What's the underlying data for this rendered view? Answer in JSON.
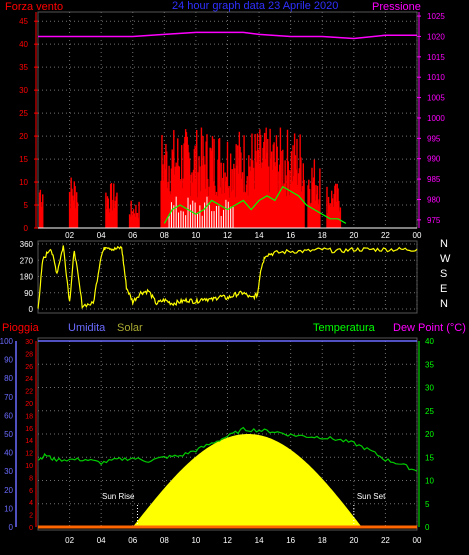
{
  "header": {
    "left_label": "Forza vento",
    "title": "24 hour graph data  23 Aprile 2020",
    "right_label": "Pressione"
  },
  "wind_dir_labels": [
    "N",
    "W",
    "S",
    "E",
    "N"
  ],
  "bottom_header": {
    "rain": "Pioggia",
    "humidity": "Umidita",
    "solar": "Solar",
    "temperature": "Temperatura",
    "dewpoint": "Dew Point (°C)"
  },
  "markers": {
    "sun_rise": "Sun Rise",
    "sun_set": "Sun Set"
  },
  "colors": {
    "wind": "#ff0000",
    "gust": "#ff0000",
    "avg_wind": "#00ff00",
    "pressure": "#ff00ff",
    "direction": "#ffff00",
    "solar": "#ffff00",
    "temperature": "#00cc00",
    "grid": "#707070",
    "axis_x": "#ffffff",
    "rain_axis": "#ff0000",
    "humidity_axis": "#6b6bff",
    "temp_axis": "#00ff00",
    "title": "#3030ff"
  },
  "chart_data": [
    {
      "type": "bar",
      "name": "wind",
      "x_ticks": [
        "02",
        "04",
        "06",
        "08",
        "10",
        "12",
        "14",
        "16",
        "18",
        "20",
        "22",
        "00"
      ],
      "y_left_ticks": [
        0,
        5,
        10,
        15,
        20,
        25,
        30,
        35,
        40,
        45
      ],
      "y_right_ticks": [
        975,
        980,
        985,
        990,
        995,
        1000,
        1005,
        1010,
        1015,
        1020,
        1025
      ],
      "ylim_left": [
        0,
        47
      ],
      "ylim_right": [
        973,
        1026
      ],
      "pressure": [
        [
          0,
          1020
        ],
        [
          2,
          1020
        ],
        [
          4,
          1020
        ],
        [
          6,
          1020
        ],
        [
          8,
          1020.5
        ],
        [
          10,
          1021
        ],
        [
          12,
          1021
        ],
        [
          13,
          1021
        ],
        [
          14,
          1020.5
        ],
        [
          16,
          1020
        ],
        [
          18,
          1020
        ],
        [
          20,
          1019.5
        ],
        [
          22,
          1020.3
        ],
        [
          24,
          1020.3
        ]
      ],
      "gust_blocks": [
        {
          "start": 0.1,
          "end": 0.3,
          "max": 12
        },
        {
          "start": 2.0,
          "end": 2.5,
          "max": 12
        },
        {
          "start": 4.3,
          "end": 5.0,
          "max": 10
        },
        {
          "start": 5.8,
          "end": 6.4,
          "max": 6
        },
        {
          "start": 7.8,
          "end": 16.9,
          "max": 22
        },
        {
          "start": 17.1,
          "end": 17.9,
          "max": 16
        },
        {
          "start": 18.3,
          "end": 19.2,
          "max": 10
        }
      ],
      "avg_wind": [
        [
          8.0,
          1
        ],
        [
          8.5,
          4
        ],
        [
          9.0,
          5
        ],
        [
          9.5,
          4
        ],
        [
          10.0,
          3
        ],
        [
          10.5,
          4
        ],
        [
          11.0,
          6
        ],
        [
          11.5,
          5
        ],
        [
          12.0,
          4
        ],
        [
          12.5,
          5
        ],
        [
          13.0,
          6
        ],
        [
          13.5,
          4
        ],
        [
          14.0,
          6
        ],
        [
          14.5,
          7
        ],
        [
          15.0,
          6
        ],
        [
          15.5,
          9
        ],
        [
          16.0,
          8
        ],
        [
          16.5,
          7
        ],
        [
          17.0,
          5
        ],
        [
          17.5,
          4
        ],
        [
          18.0,
          3
        ],
        [
          18.5,
          2
        ],
        [
          19.0,
          2
        ],
        [
          19.5,
          1
        ]
      ]
    },
    {
      "type": "line",
      "name": "direction",
      "x_ticks": [
        "02",
        "04",
        "06",
        "08",
        "10",
        "12",
        "14",
        "16",
        "18",
        "20",
        "22",
        "00"
      ],
      "y_ticks": [
        0,
        90,
        180,
        270,
        360
      ],
      "ylim": [
        0,
        360
      ],
      "values": [
        [
          0,
          0
        ],
        [
          0.3,
          270
        ],
        [
          0.8,
          340
        ],
        [
          1.2,
          200
        ],
        [
          1.6,
          350
        ],
        [
          2.0,
          40
        ],
        [
          2.3,
          330
        ],
        [
          2.8,
          20
        ],
        [
          3.5,
          30
        ],
        [
          4.0,
          300
        ],
        [
          4.3,
          350
        ],
        [
          4.8,
          330
        ],
        [
          5.3,
          340
        ],
        [
          5.6,
          120
        ],
        [
          6.0,
          40
        ],
        [
          6.5,
          90
        ],
        [
          7.0,
          100
        ],
        [
          7.5,
          30
        ],
        [
          8.0,
          50
        ],
        [
          8.5,
          30
        ],
        [
          9.0,
          40
        ],
        [
          9.5,
          50
        ],
        [
          10.0,
          40
        ],
        [
          10.5,
          60
        ],
        [
          11.0,
          50
        ],
        [
          11.5,
          70
        ],
        [
          12.0,
          60
        ],
        [
          12.5,
          80
        ],
        [
          13.0,
          90
        ],
        [
          13.5,
          60
        ],
        [
          13.9,
          80
        ],
        [
          14.1,
          220
        ],
        [
          14.4,
          300
        ],
        [
          15.0,
          310
        ],
        [
          16.0,
          320
        ],
        [
          17.0,
          320
        ],
        [
          18.0,
          330
        ],
        [
          19.0,
          320
        ],
        [
          20.0,
          330
        ],
        [
          21.0,
          330
        ],
        [
          22.0,
          330
        ],
        [
          23.0,
          330
        ],
        [
          24.0,
          330
        ]
      ]
    },
    {
      "type": "line",
      "name": "temperature_solar",
      "x_ticks": [
        "02",
        "04",
        "06",
        "08",
        "10",
        "12",
        "14",
        "16",
        "18",
        "20",
        "22",
        "00"
      ],
      "y_left_humidity_ticks": [
        0,
        10,
        20,
        30,
        40,
        50,
        60,
        70,
        80,
        90,
        100
      ],
      "y_left_rain_ticks": [
        0,
        2,
        4,
        6,
        8,
        10,
        12,
        14,
        16,
        18,
        20,
        22,
        24,
        26,
        28,
        30
      ],
      "y_right_ticks": [
        0,
        5,
        10,
        15,
        20,
        25,
        30,
        35,
        40
      ],
      "ylim_temp": [
        0,
        40
      ],
      "temperature": [
        [
          0,
          14.5
        ],
        [
          0.5,
          15.5
        ],
        [
          1,
          14.5
        ],
        [
          2,
          14.5
        ],
        [
          3,
          14.5
        ],
        [
          4,
          13.8
        ],
        [
          5,
          14.5
        ],
        [
          6,
          14.8
        ],
        [
          7,
          14.2
        ],
        [
          8,
          15.0
        ],
        [
          9,
          15.3
        ],
        [
          10,
          16.5
        ],
        [
          11,
          18
        ],
        [
          12,
          19.5
        ],
        [
          13,
          21
        ],
        [
          14,
          20.8
        ],
        [
          15,
          20.5
        ],
        [
          16,
          19.8
        ],
        [
          17,
          19.5
        ],
        [
          18,
          19.3
        ],
        [
          19,
          18.8
        ],
        [
          20,
          18
        ],
        [
          21,
          16.5
        ],
        [
          22,
          14.5
        ],
        [
          23,
          13.5
        ],
        [
          24,
          12
        ]
      ],
      "solar_peak": 50,
      "solar_start": 6.0,
      "solar_end": 20.5,
      "solar_peak_time": 13.3,
      "rain": 0,
      "sun_rise": 6.3,
      "sun_set": 20.0
    }
  ]
}
